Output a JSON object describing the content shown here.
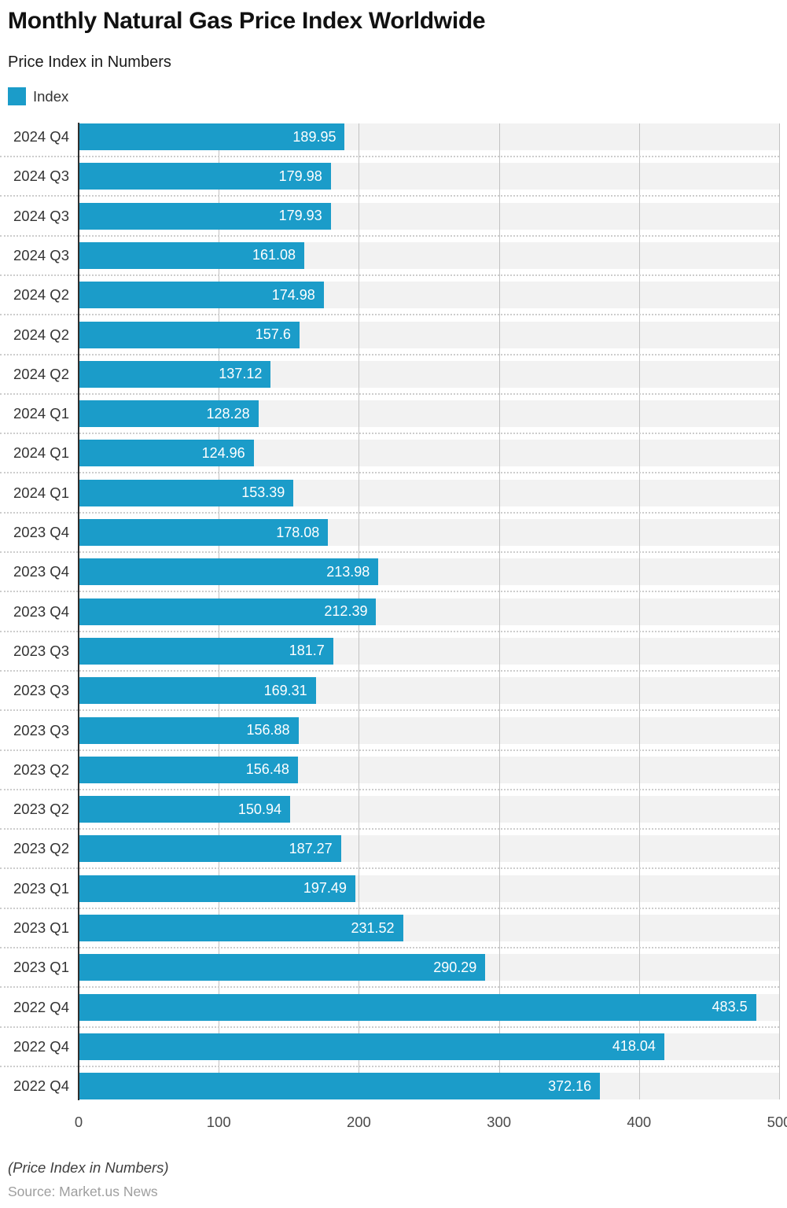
{
  "header": {
    "title": "Monthly Natural Gas Price Index Worldwide",
    "subtitle": "Price Index in Numbers"
  },
  "legend": {
    "label": "Index",
    "color": "#1b9cc9"
  },
  "chart_data": {
    "type": "bar",
    "orientation": "horizontal",
    "title": "Monthly Natural Gas Price Index Worldwide",
    "subtitle": "Price Index in Numbers",
    "legend_entries": [
      "Index"
    ],
    "categories": [
      "2024 Q4",
      "2024 Q3",
      "2024 Q3",
      "2024 Q3",
      "2024 Q2",
      "2024 Q2",
      "2024 Q2",
      "2024 Q1",
      "2024 Q1",
      "2024 Q1",
      "2023 Q4",
      "2023 Q4",
      "2023 Q4",
      "2023 Q3",
      "2023 Q3",
      "2023 Q3",
      "2023 Q2",
      "2023 Q2",
      "2023 Q2",
      "2023 Q1",
      "2023 Q1",
      "2023 Q1",
      "2022 Q4",
      "2022 Q4",
      "2022 Q4"
    ],
    "values": [
      189.95,
      179.98,
      179.93,
      161.08,
      174.98,
      157.6,
      137.12,
      128.28,
      124.96,
      153.39,
      178.08,
      213.98,
      212.39,
      181.7,
      169.31,
      156.88,
      156.48,
      150.94,
      187.27,
      197.49,
      231.52,
      290.29,
      483.5,
      418.04,
      372.16
    ],
    "xlabel": "",
    "ylabel": "",
    "xlim": [
      0,
      500
    ],
    "xticks": [
      0,
      100,
      200,
      300,
      400,
      500
    ],
    "grid": true,
    "bar_color": "#1b9cc9",
    "track_color": "#f2f2f2"
  },
  "footer": {
    "note": "(Price Index in Numbers)",
    "source": "Source: Market.us News"
  }
}
